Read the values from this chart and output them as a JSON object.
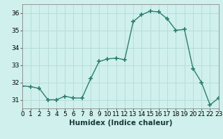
{
  "x": [
    0,
    1,
    2,
    3,
    4,
    5,
    6,
    7,
    8,
    9,
    10,
    11,
    12,
    13,
    14,
    15,
    16,
    17,
    18,
    19,
    20,
    21,
    22,
    23
  ],
  "y": [
    31.8,
    31.75,
    31.65,
    31.0,
    31.0,
    31.2,
    31.1,
    31.1,
    32.2,
    33.2,
    33.35,
    33.4,
    33.3,
    35.5,
    35.9,
    36.1,
    36.05,
    35.65,
    35.0,
    35.05,
    32.8,
    32.0,
    30.7,
    31.1
  ],
  "line_color": "#2d7d6e",
  "marker": "+",
  "markersize": 4,
  "markeredgewidth": 1.2,
  "bg_color": "#cff0ec",
  "grid_color": "#b8ddd8",
  "xlabel": "Humidex (Indice chaleur)",
  "xlim": [
    0,
    23
  ],
  "ylim": [
    30.5,
    36.5
  ],
  "yticks": [
    31,
    32,
    33,
    34,
    35,
    36
  ],
  "xticks": [
    0,
    1,
    2,
    3,
    4,
    5,
    6,
    7,
    8,
    9,
    10,
    11,
    12,
    13,
    14,
    15,
    16,
    17,
    18,
    19,
    20,
    21,
    22,
    23
  ],
  "xlabel_fontsize": 7.5,
  "tick_fontsize": 6.5,
  "linewidth": 1.0
}
